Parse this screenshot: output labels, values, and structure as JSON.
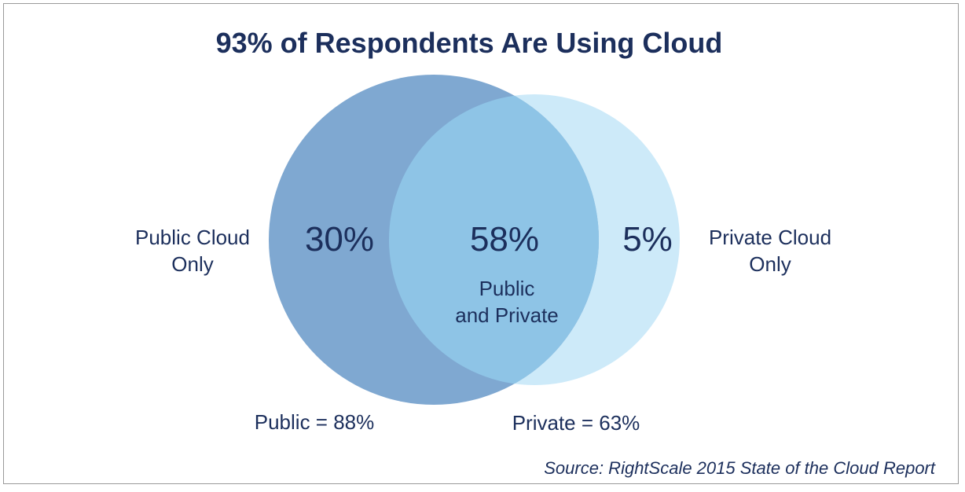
{
  "chart_data": {
    "type": "venn",
    "title": "93% of Respondents Are Using Cloud",
    "sets": [
      {
        "name": "Public",
        "total_label": "Public = 88%",
        "total": 88,
        "color": "#7fa8d1"
      },
      {
        "name": "Private",
        "total_label": "Private = 63%",
        "total": 63,
        "color": "#cdeaf9"
      }
    ],
    "regions": [
      {
        "key": "public_only",
        "value": 30,
        "value_label": "30%",
        "label_lines": [
          "Public Cloud",
          "Only"
        ]
      },
      {
        "key": "both",
        "value": 58,
        "value_label": "58%",
        "label_lines": [
          "Public",
          "and Private"
        ]
      },
      {
        "key": "private_only",
        "value": 5,
        "value_label": "5%",
        "label_lines": [
          "Private Cloud",
          "Only"
        ]
      }
    ],
    "overlap_color": "#8ec4e6",
    "source": "Source: RightScale 2015 State of the Cloud Report"
  },
  "colors": {
    "text": "#1c2f5c",
    "border": "#9a9a9a"
  }
}
